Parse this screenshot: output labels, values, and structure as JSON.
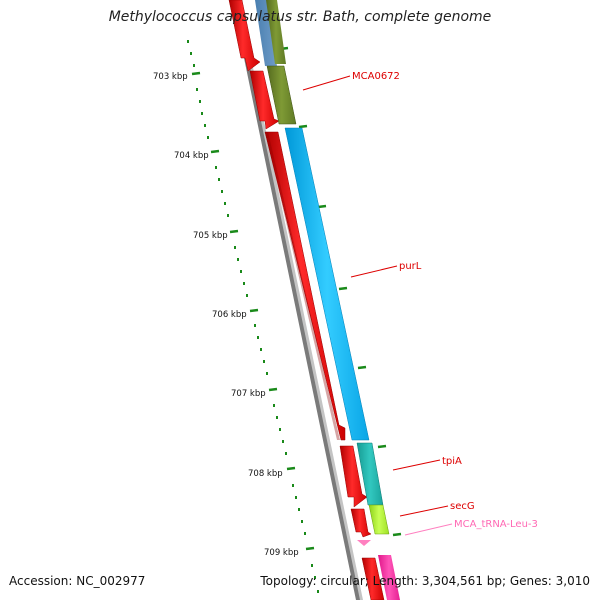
{
  "title": "Methylococcus capsulatus str. Bath, complete genome",
  "accession": "Accession: NC_002977",
  "summary": "Topology: circular; Length: 3,304,561 bp; Genes: 3,010",
  "scale": {
    "unit": "kbp",
    "labels": [
      "703 kbp",
      "704 kbp",
      "705 kbp",
      "706 kbp",
      "707 kbp",
      "708 kbp",
      "709 kbp"
    ]
  },
  "features": [
    {
      "name": "MCA0672",
      "track": "forward",
      "type": "CDS",
      "color": "#6b8e23"
    },
    {
      "name": "purL",
      "track": "forward",
      "type": "CDS",
      "color": "#00bfff"
    },
    {
      "name": "tpiA",
      "track": "forward",
      "type": "CDS",
      "color": "#20b2aa"
    },
    {
      "name": "secG",
      "track": "forward",
      "type": "CDS",
      "color": "#adff2f"
    },
    {
      "name": "MCA_tRNA-Leu-3",
      "track": "forward",
      "type": "tRNA",
      "color": "#ff69b4"
    }
  ],
  "colors": {
    "backbone": "#808080",
    "reverse_cds": "#ff0000",
    "label_text": "#dd0000",
    "trna_label": "#ff69b4",
    "tick": "#008000"
  }
}
